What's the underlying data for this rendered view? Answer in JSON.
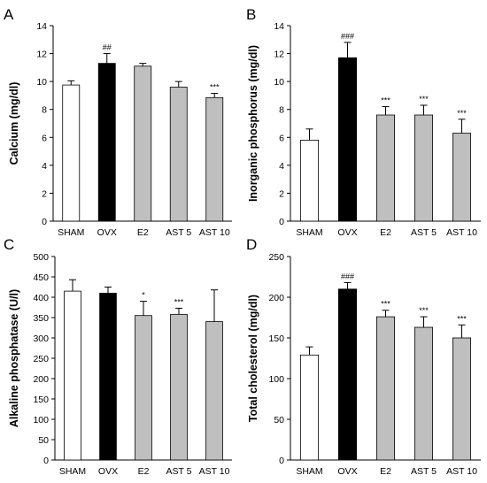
{
  "figure": {
    "categories": [
      "SHAM",
      "OVX",
      "E2",
      "AST 5",
      "AST 10"
    ],
    "colors": {
      "sham": "#ffffff",
      "ovx": "#000000",
      "treated": "#bfbfbf",
      "axis": "#000000"
    }
  },
  "chart_data": [
    {
      "panel_label": "A",
      "type": "bar",
      "ylabel": "Calcium (mg/dl)",
      "categories": [
        "SHAM",
        "OVX",
        "E2",
        "AST 5",
        "AST 10"
      ],
      "values": [
        9.75,
        11.3,
        11.1,
        9.6,
        8.85
      ],
      "errors": [
        0.3,
        0.7,
        0.2,
        0.4,
        0.3
      ],
      "significance": [
        "",
        "##",
        "",
        "",
        "***"
      ],
      "ylim": [
        0,
        14
      ],
      "yticks": [
        0,
        2,
        4,
        6,
        8,
        10,
        12,
        14
      ],
      "grid": false
    },
    {
      "panel_label": "B",
      "type": "bar",
      "ylabel": "Inorganic phosphorus (mg/dl)",
      "categories": [
        "SHAM",
        "OVX",
        "E2",
        "AST 5",
        "AST 10"
      ],
      "values": [
        5.8,
        11.7,
        7.6,
        7.6,
        6.3
      ],
      "errors": [
        0.8,
        1.1,
        0.6,
        0.7,
        1.0
      ],
      "significance": [
        "",
        "###",
        "***",
        "***",
        "***"
      ],
      "ylim": [
        0,
        14
      ],
      "yticks": [
        0,
        2,
        4,
        6,
        8,
        10,
        12,
        14
      ],
      "grid": false
    },
    {
      "panel_label": "C",
      "type": "bar",
      "ylabel": "Alkaline phosphatase (U/l)",
      "categories": [
        "SHAM",
        "OVX",
        "E2",
        "AST 5",
        "AST 10"
      ],
      "values": [
        415,
        410,
        355,
        358,
        340
      ],
      "errors": [
        28,
        15,
        35,
        15,
        78
      ],
      "significance": [
        "",
        "",
        "*",
        "***",
        ""
      ],
      "ylim": [
        0,
        500
      ],
      "yticks": [
        0,
        50,
        100,
        150,
        200,
        250,
        300,
        350,
        400,
        450,
        500
      ],
      "grid": false
    },
    {
      "panel_label": "D",
      "type": "bar",
      "ylabel": "Total cholesterol (mg/dl)",
      "categories": [
        "SHAM",
        "OVX",
        "E2",
        "AST 5",
        "AST 10"
      ],
      "values": [
        129,
        210,
        176,
        163,
        150
      ],
      "errors": [
        10,
        8,
        8,
        13,
        16
      ],
      "significance": [
        "",
        "###",
        "***",
        "***",
        "***"
      ],
      "ylim": [
        0,
        250
      ],
      "yticks": [
        0,
        50,
        100,
        150,
        200,
        250
      ],
      "grid": false
    }
  ]
}
